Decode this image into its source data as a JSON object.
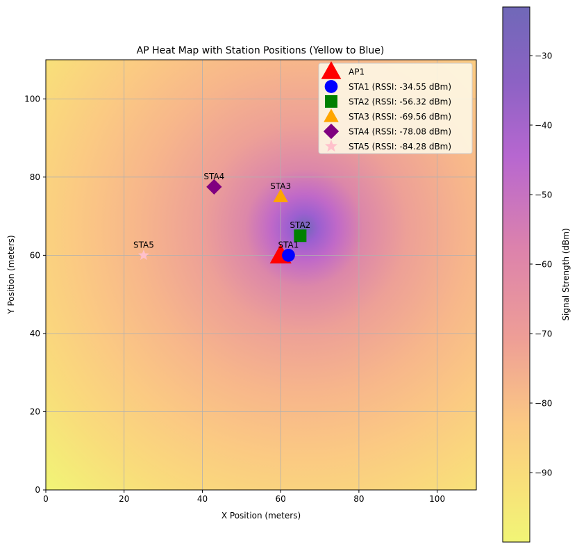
{
  "chart_data": {
    "type": "heatmap",
    "title": "AP Heat Map with Station Positions (Yellow to Blue)",
    "xlabel": "X Position (meters)",
    "ylabel": "Y Position (meters)",
    "xlim": [
      0,
      110
    ],
    "ylim": [
      0,
      110
    ],
    "xticks": [
      0,
      20,
      40,
      60,
      80,
      100
    ],
    "yticks": [
      0,
      20,
      40,
      60,
      80,
      100
    ],
    "grid": true,
    "legend_location": "upper right",
    "heatmap": {
      "peak_x": 66,
      "peak_y": 67,
      "peak_value": -23,
      "min_value": -100,
      "vmin": -100,
      "vmax": -23
    },
    "colorbar": {
      "label": "Signal Strength (dBm)",
      "ticks": [
        -30,
        -40,
        -50,
        -60,
        -70,
        -80,
        -90
      ],
      "tick_labels": [
        "−30",
        "−40",
        "−50",
        "−60",
        "−70",
        "−80",
        "−90"
      ],
      "colormap": [
        "#f1f576",
        "#fbc983",
        "#ee9e96",
        "#c36fc4",
        "#7068b8"
      ]
    },
    "points": [
      {
        "name": "AP1",
        "legend": "AP1",
        "x": 60,
        "y": 60,
        "marker": "triangle",
        "color": "#ff0000",
        "annotate": false
      },
      {
        "name": "STA1",
        "legend": "STA1 (RSSI: -34.55 dBm)",
        "x": 62,
        "y": 60,
        "marker": "circle",
        "color": "#0000ff",
        "annotate": true
      },
      {
        "name": "STA2",
        "legend": "STA2 (RSSI: -56.32 dBm)",
        "x": 65,
        "y": 65,
        "marker": "square",
        "color": "#008000",
        "annotate": true
      },
      {
        "name": "STA3",
        "legend": "STA3 (RSSI: -69.56 dBm)",
        "x": 60,
        "y": 75,
        "marker": "triangle",
        "color": "#ffa500",
        "annotate": true
      },
      {
        "name": "STA4",
        "legend": "STA4 (RSSI: -78.08 dBm)",
        "x": 43,
        "y": 77.5,
        "marker": "diamond",
        "color": "#800080",
        "annotate": true
      },
      {
        "name": "STA5",
        "legend": "STA5 (RSSI: -84.28 dBm)",
        "x": 25,
        "y": 60,
        "marker": "star",
        "color": "#ffc0cb",
        "annotate": true
      }
    ]
  }
}
